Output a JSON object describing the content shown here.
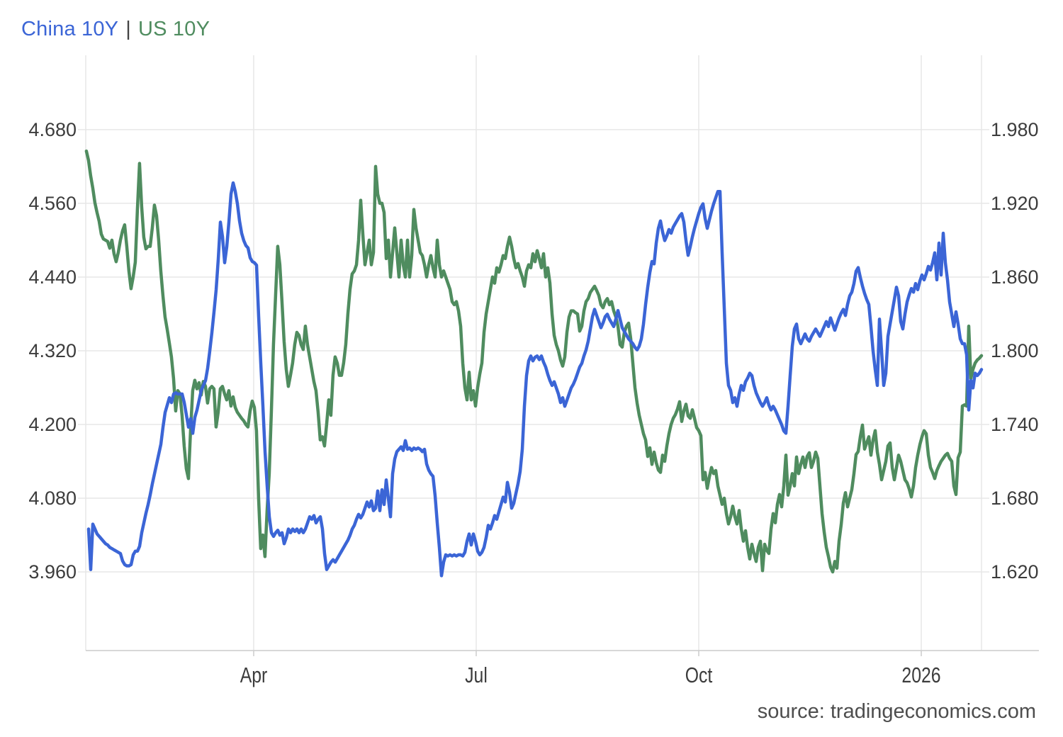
{
  "legend": {
    "china_label": "China 10Y",
    "separator": "|",
    "us_label": "US 10Y"
  },
  "source_credit": "source: tradingeconomics.com",
  "colors": {
    "china_line": "#3b65d6",
    "us_line": "#4f8c5f",
    "grid": "#e7e7e7",
    "axis_line": "#cccccc",
    "tick_text": "#3c3c3c",
    "legend_separator": "#444444",
    "source_text": "#4d4d4d",
    "background": "#ffffff"
  },
  "chart_data": {
    "type": "line",
    "title": "China 10Y vs US 10Y government bond yield",
    "grid": true,
    "legend_position": "top-left",
    "x_axis": {
      "unit": "months since Jan 2025",
      "min_month": 0.736,
      "max_month": 12.812,
      "ticks": [
        {
          "label": "Apr",
          "month": 3
        },
        {
          "label": "Jul",
          "month": 6
        },
        {
          "label": "Oct",
          "month": 9
        },
        {
          "label": "2026",
          "month": 12
        }
      ]
    },
    "left_axis": {
      "series": "US 10Y",
      "min": 3.832,
      "max": 4.801,
      "ticks": [
        {
          "label": "4.680",
          "value": 4.68
        },
        {
          "label": "4.560",
          "value": 4.56
        },
        {
          "label": "4.440",
          "value": 4.44
        },
        {
          "label": "4.320",
          "value": 4.32
        },
        {
          "label": "4.200",
          "value": 4.2
        },
        {
          "label": "4.080",
          "value": 4.08
        },
        {
          "label": "3.960",
          "value": 3.96
        }
      ]
    },
    "right_axis": {
      "series": "China 10Y",
      "min": 1.556,
      "max": 2.041,
      "ticks": [
        {
          "label": "1.980",
          "value": 1.98
        },
        {
          "label": "1.920",
          "value": 1.92
        },
        {
          "label": "1.860",
          "value": 1.86
        },
        {
          "label": "1.800",
          "value": 1.8
        },
        {
          "label": "1.740",
          "value": 1.74
        },
        {
          "label": "1.680",
          "value": 1.68
        },
        {
          "label": "1.620",
          "value": 1.62
        }
      ]
    },
    "series": [
      {
        "name": "China 10Y",
        "axis": "right",
        "color_key": "china_line",
        "x_start_month": 0.774,
        "x_step_month": 0.028662,
        "values": [
          1.655,
          1.622,
          1.659,
          1.655,
          1.651,
          1.649,
          1.647,
          1.645,
          1.643,
          1.642,
          1.64,
          1.639,
          1.638,
          1.637,
          1.636,
          1.635,
          1.629,
          1.626,
          1.625,
          1.625,
          1.626,
          1.634,
          1.637,
          1.637,
          1.641,
          1.652,
          1.66,
          1.668,
          1.675,
          1.683,
          1.692,
          1.7,
          1.708,
          1.716,
          1.724,
          1.738,
          1.75,
          1.756,
          1.762,
          1.758,
          1.765,
          1.766,
          1.765,
          1.765,
          1.765,
          1.758,
          1.748,
          1.738,
          1.745,
          1.733,
          1.746,
          1.752,
          1.76,
          1.768,
          1.772,
          1.776,
          1.786,
          1.8,
          1.815,
          1.832,
          1.85,
          1.875,
          1.905,
          1.893,
          1.872,
          1.885,
          1.905,
          1.928,
          1.937,
          1.93,
          1.92,
          1.906,
          1.896,
          1.89,
          1.886,
          1.884,
          1.876,
          1.873,
          1.872,
          1.87,
          1.828,
          1.79,
          1.755,
          1.718,
          1.69,
          1.665,
          1.652,
          1.649,
          1.652,
          1.654,
          1.65,
          1.652,
          1.643,
          1.648,
          1.655,
          1.652,
          1.655,
          1.653,
          1.655,
          1.652,
          1.655,
          1.652,
          1.655,
          1.66,
          1.665,
          1.663,
          1.666,
          1.66,
          1.663,
          1.665,
          1.655,
          1.635,
          1.622,
          1.625,
          1.628,
          1.63,
          1.628,
          1.631,
          1.634,
          1.637,
          1.64,
          1.643,
          1.646,
          1.65,
          1.655,
          1.658,
          1.663,
          1.667,
          1.664,
          1.667,
          1.672,
          1.677,
          1.673,
          1.678,
          1.67,
          1.672,
          1.686,
          1.67,
          1.687,
          1.675,
          1.695,
          1.68,
          1.665,
          1.7,
          1.712,
          1.718,
          1.72,
          1.722,
          1.719,
          1.727,
          1.72,
          1.721,
          1.719,
          1.721,
          1.72,
          1.721,
          1.72,
          1.718,
          1.72,
          1.708,
          1.703,
          1.7,
          1.698,
          1.682,
          1.66,
          1.64,
          1.617,
          1.628,
          1.634,
          1.633,
          1.634,
          1.633,
          1.634,
          1.633,
          1.634,
          1.634,
          1.633,
          1.636,
          1.645,
          1.651,
          1.642,
          1.651,
          1.645,
          1.637,
          1.634,
          1.636,
          1.64,
          1.648,
          1.658,
          1.655,
          1.66,
          1.666,
          1.663,
          1.669,
          1.675,
          1.681,
          1.677,
          1.693,
          1.685,
          1.672,
          1.676,
          1.684,
          1.692,
          1.702,
          1.72,
          1.755,
          1.78,
          1.792,
          1.796,
          1.792,
          1.795,
          1.796,
          1.793,
          1.796,
          1.791,
          1.787,
          1.781,
          1.776,
          1.772,
          1.775,
          1.77,
          1.765,
          1.758,
          1.762,
          1.755,
          1.76,
          1.765,
          1.77,
          1.773,
          1.777,
          1.782,
          1.787,
          1.79,
          1.796,
          1.801,
          1.808,
          1.818,
          1.828,
          1.834,
          1.829,
          1.824,
          1.819,
          1.823,
          1.828,
          1.83,
          1.826,
          1.823,
          1.82,
          1.826,
          1.833,
          1.826,
          1.819,
          1.816,
          1.813,
          1.81,
          1.808,
          1.806,
          1.803,
          1.801,
          1.804,
          1.81,
          1.822,
          1.838,
          1.852,
          1.864,
          1.873,
          1.871,
          1.888,
          1.9,
          1.906,
          1.897,
          1.89,
          1.894,
          1.899,
          1.896,
          1.901,
          1.904,
          1.907,
          1.91,
          1.912,
          1.905,
          1.89,
          1.878,
          1.885,
          1.893,
          1.9,
          1.906,
          1.912,
          1.917,
          1.92,
          1.908,
          1.9,
          1.907,
          1.914,
          1.92,
          1.925,
          1.93,
          1.93,
          1.88,
          1.835,
          1.79,
          1.772,
          1.768,
          1.758,
          1.762,
          1.755,
          1.765,
          1.772,
          1.768,
          1.775,
          1.778,
          1.782,
          1.78,
          1.772,
          1.766,
          1.762,
          1.758,
          1.755,
          1.758,
          1.762,
          1.756,
          1.752,
          1.755,
          1.752,
          1.748,
          1.744,
          1.74,
          1.735,
          1.733,
          1.755,
          1.78,
          1.804,
          1.818,
          1.822,
          1.81,
          1.806,
          1.81,
          1.814,
          1.81,
          1.808,
          1.812,
          1.815,
          1.818,
          1.815,
          1.812,
          1.816,
          1.82,
          1.824,
          1.82,
          1.827,
          1.822,
          1.817,
          1.822,
          1.827,
          1.831,
          1.834,
          1.829,
          1.838,
          1.845,
          1.848,
          1.855,
          1.865,
          1.868,
          1.86,
          1.853,
          1.847,
          1.842,
          1.838,
          1.82,
          1.8,
          1.785,
          1.772,
          1.826,
          1.8,
          1.772,
          1.782,
          1.812,
          1.822,
          1.832,
          1.842,
          1.852,
          1.845,
          1.824,
          1.818,
          1.83,
          1.84,
          1.846,
          1.851,
          1.848,
          1.855,
          1.85,
          1.857,
          1.862,
          1.858,
          1.863,
          1.869,
          1.866,
          1.872,
          1.88,
          1.858,
          1.888,
          1.862,
          1.896,
          1.872,
          1.858,
          1.84,
          1.83,
          1.82,
          1.832,
          1.822,
          1.81,
          1.806,
          1.806,
          1.797,
          1.752,
          1.776,
          1.77,
          1.782,
          1.78,
          1.782,
          1.785
        ]
      },
      {
        "name": "US 10Y",
        "axis": "left",
        "color_key": "us_line",
        "x_start_month": 0.745,
        "x_step_month": 0.028662,
        "values": [
          4.645,
          4.63,
          4.605,
          4.585,
          4.561,
          4.545,
          4.531,
          4.51,
          4.502,
          4.5,
          4.498,
          4.487,
          4.5,
          4.478,
          4.465,
          4.48,
          4.5,
          4.515,
          4.525,
          4.49,
          4.45,
          4.421,
          4.44,
          4.464,
          4.55,
          4.625,
          4.555,
          4.505,
          4.486,
          4.49,
          4.49,
          4.52,
          4.557,
          4.54,
          4.5,
          4.45,
          4.41,
          4.375,
          4.355,
          4.333,
          4.31,
          4.275,
          4.222,
          4.255,
          4.25,
          4.215,
          4.165,
          4.128,
          4.112,
          4.19,
          4.255,
          4.272,
          4.258,
          4.268,
          4.248,
          4.27,
          4.262,
          4.235,
          4.258,
          4.262,
          4.258,
          4.196,
          4.22,
          4.258,
          4.262,
          4.25,
          4.24,
          4.255,
          4.23,
          4.245,
          4.228,
          4.22,
          4.215,
          4.21,
          4.206,
          4.2,
          4.196,
          4.222,
          4.238,
          4.228,
          4.19,
          4.08,
          3.998,
          4.02,
          3.985,
          4.06,
          4.12,
          4.22,
          4.33,
          4.41,
          4.49,
          4.46,
          4.4,
          4.335,
          4.29,
          4.262,
          4.28,
          4.3,
          4.33,
          4.35,
          4.345,
          4.33,
          4.322,
          4.36,
          4.33,
          4.31,
          4.29,
          4.27,
          4.255,
          4.22,
          4.175,
          4.18,
          4.165,
          4.2,
          4.24,
          4.215,
          4.28,
          4.31,
          4.3,
          4.28,
          4.28,
          4.3,
          4.33,
          4.38,
          4.42,
          4.445,
          4.45,
          4.46,
          4.5,
          4.565,
          4.51,
          4.46,
          4.48,
          4.5,
          4.46,
          4.48,
          4.62,
          4.575,
          4.56,
          4.56,
          4.545,
          4.47,
          4.5,
          4.44,
          4.48,
          4.52,
          4.48,
          4.44,
          4.5,
          4.46,
          4.44,
          4.5,
          4.44,
          4.475,
          4.55,
          4.52,
          4.5,
          4.48,
          4.475,
          4.46,
          4.44,
          4.46,
          4.475,
          4.455,
          4.44,
          4.5,
          4.46,
          4.44,
          4.45,
          4.44,
          4.43,
          4.42,
          4.4,
          4.395,
          4.4,
          4.385,
          4.36,
          4.3,
          4.26,
          4.24,
          4.285,
          4.24,
          4.255,
          4.23,
          4.26,
          4.282,
          4.3,
          4.35,
          4.38,
          4.4,
          4.42,
          4.44,
          4.43,
          4.455,
          4.448,
          4.46,
          4.475,
          4.47,
          4.49,
          4.505,
          4.49,
          4.47,
          4.455,
          4.462,
          4.45,
          4.44,
          4.425,
          4.45,
          4.46,
          4.455,
          4.478,
          4.465,
          4.483,
          4.47,
          4.455,
          4.478,
          4.44,
          4.455,
          4.43,
          4.38,
          4.345,
          4.33,
          4.32,
          4.305,
          4.295,
          4.31,
          4.35,
          4.375,
          4.385,
          4.385,
          4.382,
          4.38,
          4.352,
          4.36,
          4.385,
          4.4,
          4.405,
          4.415,
          4.42,
          4.425,
          4.418,
          4.41,
          4.395,
          4.39,
          4.4,
          4.405,
          4.395,
          4.4,
          4.385,
          4.375,
          4.36,
          4.33,
          4.326,
          4.35,
          4.36,
          4.365,
          4.34,
          4.3,
          4.26,
          4.235,
          4.215,
          4.2,
          4.185,
          4.175,
          4.148,
          4.162,
          4.135,
          4.155,
          4.138,
          4.126,
          4.122,
          4.15,
          4.14,
          4.165,
          4.185,
          4.2,
          4.21,
          4.216,
          4.225,
          4.237,
          4.205,
          4.222,
          4.233,
          4.214,
          4.21,
          4.224,
          4.21,
          4.195,
          4.19,
          4.182,
          4.11,
          4.122,
          4.096,
          4.115,
          4.13,
          4.12,
          4.125,
          4.1,
          4.085,
          4.07,
          4.08,
          4.055,
          4.038,
          4.05,
          4.067,
          4.05,
          4.038,
          4.06,
          4.03,
          4.01,
          4.027,
          4.0,
          3.981,
          4.005,
          3.99,
          3.977,
          4.0,
          4.01,
          3.962,
          4.005,
          3.995,
          3.99,
          4.03,
          4.055,
          4.04,
          4.07,
          4.086,
          4.066,
          4.1,
          4.15,
          4.085,
          4.1,
          4.12,
          4.1,
          4.147,
          4.12,
          4.135,
          4.147,
          4.13,
          4.148,
          4.154,
          4.13,
          4.14,
          4.155,
          4.145,
          4.1,
          4.055,
          4.025,
          4.0,
          3.985,
          3.968,
          3.96,
          3.977,
          3.966,
          4.01,
          4.037,
          4.072,
          4.089,
          4.066,
          4.08,
          4.094,
          4.12,
          4.151,
          4.156,
          4.18,
          4.199,
          4.16,
          4.17,
          4.18,
          4.15,
          4.175,
          4.19,
          4.155,
          4.135,
          4.11,
          4.125,
          4.14,
          4.165,
          4.17,
          4.13,
          4.11,
          4.13,
          4.15,
          4.14,
          4.125,
          4.11,
          4.105,
          4.095,
          4.082,
          4.1,
          4.13,
          4.15,
          4.167,
          4.18,
          4.19,
          4.185,
          4.15,
          4.13,
          4.122,
          4.112,
          4.125,
          4.133,
          4.14,
          4.145,
          4.15,
          4.153,
          4.145,
          4.14,
          4.1,
          4.086,
          4.146,
          4.155,
          4.23,
          4.232,
          4.23,
          4.36,
          4.275,
          4.29,
          4.3,
          4.305,
          4.308,
          4.312
        ]
      }
    ]
  }
}
